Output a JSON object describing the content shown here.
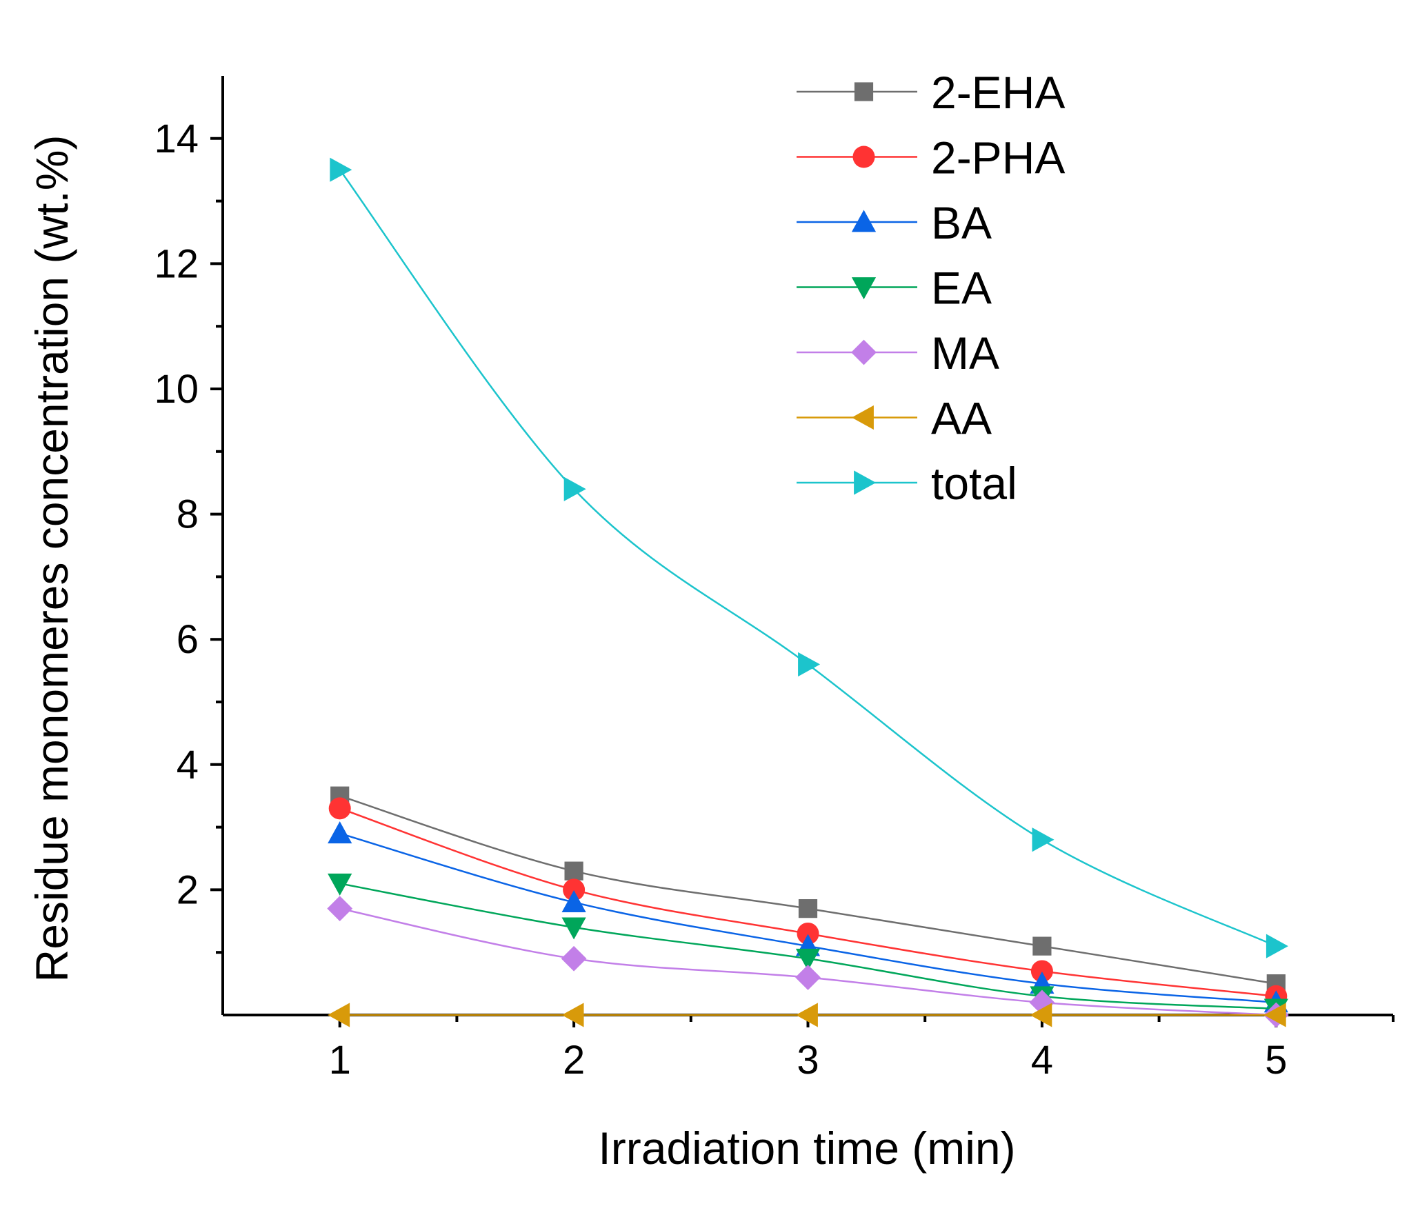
{
  "chart_data": {
    "type": "line",
    "title": "",
    "xlabel": "Irradiation time (min)",
    "ylabel": "Residue monomeres concentration (wt.%)",
    "x": [
      1,
      2,
      3,
      4,
      5
    ],
    "xlim": [
      0.5,
      5.5
    ],
    "ylim": [
      0,
      15
    ],
    "x_ticks": [
      1,
      2,
      3,
      4,
      5
    ],
    "y_ticks": [
      2,
      4,
      6,
      8,
      10,
      12,
      14
    ],
    "grid": false,
    "legend_position": "top-right",
    "series": [
      {
        "name": "2-EHA",
        "values": [
          3.5,
          2.3,
          1.7,
          1.1,
          0.5
        ],
        "color": "#6e6e6e",
        "marker": "square"
      },
      {
        "name": "2-PHA",
        "values": [
          3.3,
          2.0,
          1.3,
          0.7,
          0.3
        ],
        "color": "#ff3333",
        "marker": "circle"
      },
      {
        "name": "BA",
        "values": [
          2.9,
          1.8,
          1.1,
          0.5,
          0.2
        ],
        "color": "#0a64e6",
        "marker": "triangle-up"
      },
      {
        "name": "EA",
        "values": [
          2.1,
          1.4,
          0.9,
          0.3,
          0.1
        ],
        "color": "#00a65a",
        "marker": "triangle-down"
      },
      {
        "name": "MA",
        "values": [
          1.7,
          0.9,
          0.6,
          0.2,
          0.0
        ],
        "color": "#c27fe8",
        "marker": "diamond"
      },
      {
        "name": "AA",
        "values": [
          0.0,
          0.0,
          0.0,
          0.0,
          0.0
        ],
        "color": "#d89a0a",
        "marker": "triangle-left"
      },
      {
        "name": "total",
        "values": [
          13.5,
          8.4,
          5.6,
          2.8,
          1.1
        ],
        "color": "#1cc4cc",
        "marker": "triangle-right"
      }
    ]
  }
}
